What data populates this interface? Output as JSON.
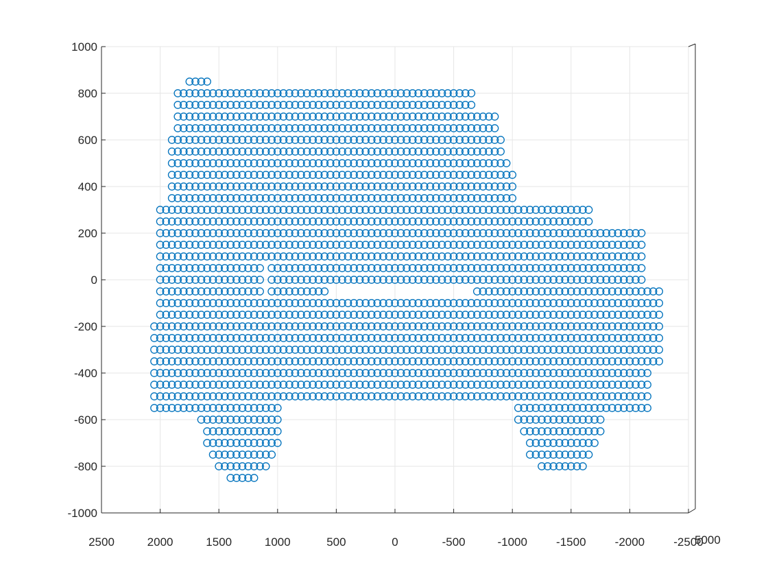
{
  "chart_data": {
    "type": "scatter",
    "title": "",
    "xlabel": "",
    "ylabel": "",
    "xlim": [
      2500,
      -2500
    ],
    "ylim": [
      -1000,
      1000
    ],
    "x_reversed": true,
    "x_ticks": [
      2500,
      2000,
      1500,
      1000,
      500,
      0,
      -500,
      -1000,
      -1500,
      -2000,
      -2500
    ],
    "x_tick_labels": [
      "2500",
      "2000",
      "1500",
      "1000",
      "500",
      "0",
      "-500",
      "-1000",
      "-1500",
      "-2000",
      "-2500"
    ],
    "y_ticks": [
      -1000,
      -800,
      -600,
      -400,
      -200,
      0,
      200,
      400,
      600,
      800,
      1000
    ],
    "y_tick_labels": [
      "-1000",
      "-800",
      "-600",
      "-400",
      "-200",
      "0",
      "200",
      "400",
      "600",
      "800",
      "1000"
    ],
    "z_tick_label": "5000",
    "grid": true,
    "marker": "o",
    "marker_color": "#0072BD",
    "sampling_step": 50,
    "description_of_series": "Point cloud of the front view of an SUV (vehicle front point scan)",
    "series": [
      {
        "name": "",
        "regions": [
          {
            "part": "cab-left",
            "y_range": [
              320,
              780
            ],
            "x_range": [
              1880,
              700
            ],
            "left_edge_top": 1880
          },
          {
            "part": "cab-roof",
            "y_range": [
              780,
              830
            ],
            "x_range": [
              650,
              -100
            ]
          },
          {
            "part": "cab-right",
            "y_range": [
              320,
              730
            ],
            "x_range": [
              700,
              -1000
            ]
          },
          {
            "part": "hood",
            "y_range": [
              -200,
              320
            ],
            "x_range": [
              2000,
              -2000
            ]
          },
          {
            "part": "bumper",
            "y_range": [
              -500,
              -200
            ],
            "x_range": [
              1000,
              -1100
            ]
          },
          {
            "part": "wheel-left",
            "y_range": [
              -850,
              -200
            ],
            "x_range": [
              1650,
              1000
            ]
          },
          {
            "part": "wheel-right",
            "y_range": [
              -820,
              -200
            ],
            "x_range": [
              -1050,
              -1800
            ]
          },
          {
            "part": "fender-left",
            "y_range": [
              -550,
              -200
            ],
            "x_range": [
              2050,
              1600
            ]
          },
          {
            "part": "fender-right",
            "y_range": [
              -550,
              -200
            ],
            "x_range": [
              -1700,
              -2150
            ]
          }
        ]
      }
    ]
  }
}
